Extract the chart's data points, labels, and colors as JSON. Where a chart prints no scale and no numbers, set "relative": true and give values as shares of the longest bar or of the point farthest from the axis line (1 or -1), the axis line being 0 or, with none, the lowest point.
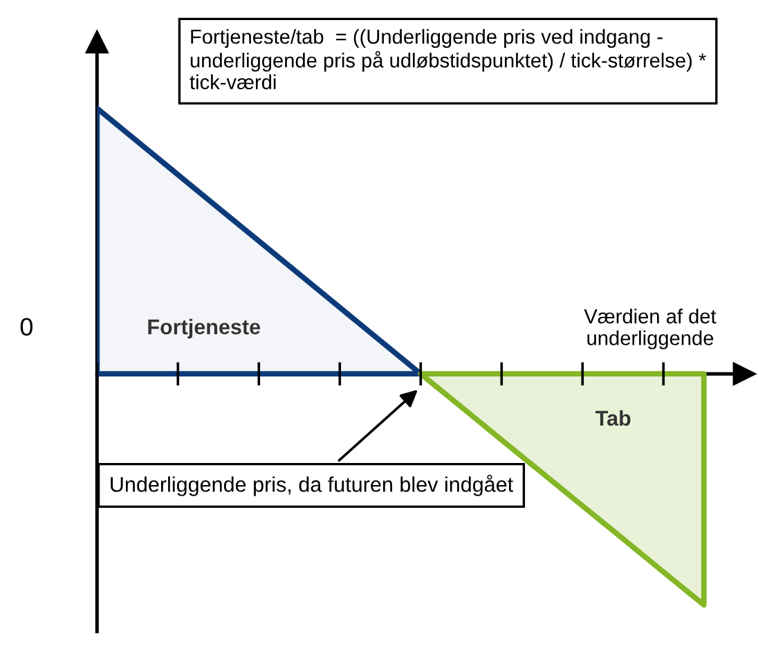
{
  "chart_data": {
    "type": "area",
    "relative": true,
    "categories": [
      null,
      null,
      null,
      null,
      null,
      null,
      null,
      null,
      null,
      null,
      null,
      null,
      null,
      null,
      null,
      null
    ],
    "xlabel": "Værdien af det underliggende",
    "series": [
      {
        "color": "#0d3b7a",
        "values": [
          1,
          0.875,
          0.75,
          0.625,
          0.5,
          0.375,
          0.25,
          0.125,
          0,
          null,
          null,
          null,
          null,
          null,
          null,
          null
        ]
      },
      {
        "color": "#84b626",
        "values": [
          null,
          null,
          null,
          null,
          null,
          null,
          null,
          null,
          0,
          -0.124,
          -0.249,
          -0.373,
          -0.497,
          -0.621,
          -0.746,
          -0.87
        ]
      }
    ],
    "annotations": [
      "Fortjeneste/tab  = ((Underliggende pris ved indgang - underliggende pris på udløbstidspunktet) / tick-størrelse) * tick-værdi",
      "0",
      "Fortjeneste",
      "Tab",
      "Underliggende pris, da futuren blev indgået"
    ],
    "grid": false,
    "legend": false
  }
}
